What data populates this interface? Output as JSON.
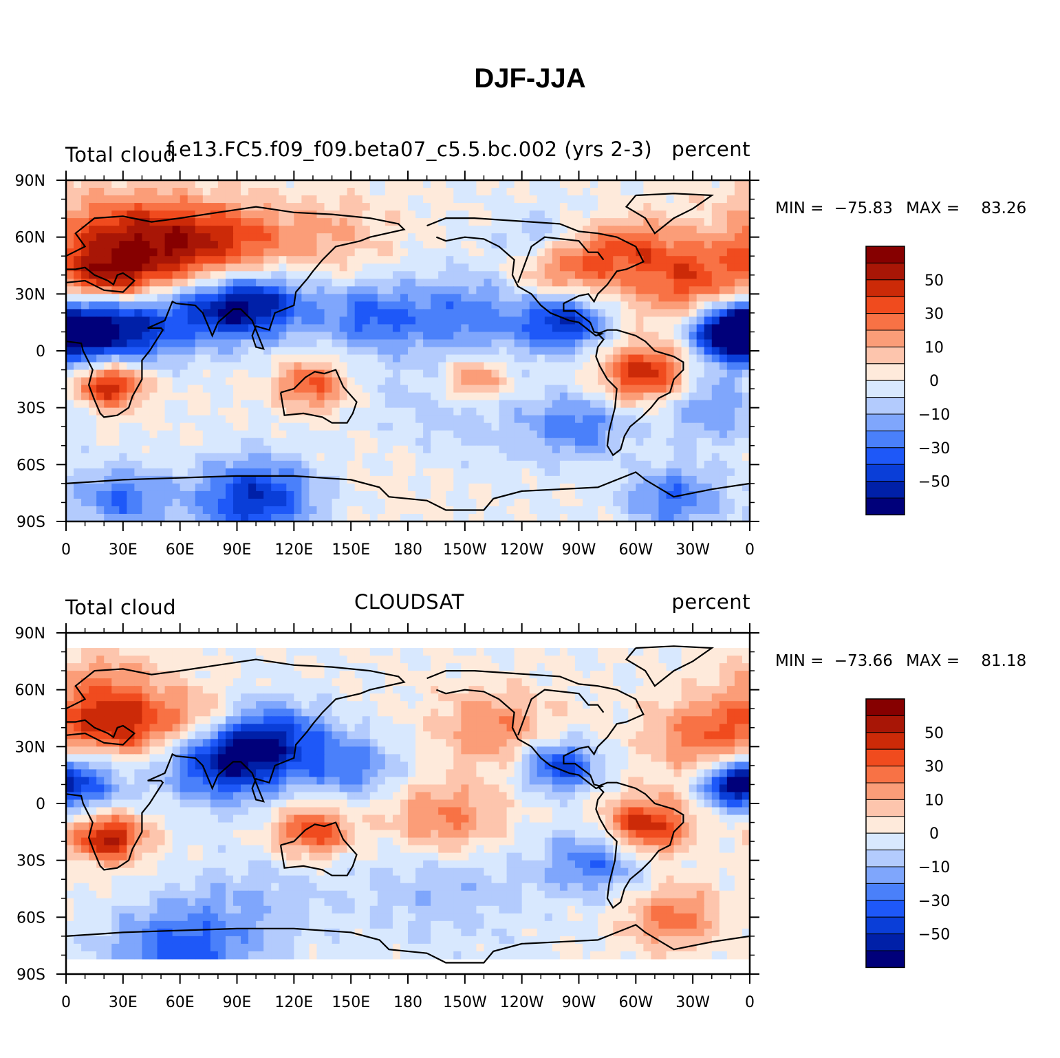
{
  "title": "DJF-JJA",
  "chart_data": [
    {
      "type": "heatmap",
      "variable": "Total cloud",
      "case": "f.e13.FC5.f09_f09.beta07_c5.5.bc.002 (yrs 2-3)",
      "units": "percent",
      "min_label": "MIN =",
      "min_value": "−75.83",
      "max_label": "MAX =",
      "max_value": "83.26",
      "x_ticks": [
        "0",
        "30E",
        "60E",
        "90E",
        "120E",
        "150E",
        "180",
        "150W",
        "120W",
        "90W",
        "60W",
        "30W",
        "0"
      ],
      "y_ticks": [
        "90N",
        "60N",
        "30N",
        "0",
        "30S",
        "60S",
        "90S"
      ],
      "xlim": [
        0,
        360
      ],
      "ylim": [
        -90,
        90
      ],
      "colorbar_labels": [
        "50",
        "30",
        "10",
        "0",
        "−10",
        "−30",
        "−50"
      ],
      "regions": [
        {
          "lon": 20,
          "lat": 60,
          "v": 35,
          "r": 30
        },
        {
          "lon": 55,
          "lat": 55,
          "v": 50,
          "r": 28
        },
        {
          "lon": 90,
          "lat": 58,
          "v": 30,
          "r": 25
        },
        {
          "lon": 22,
          "lat": 38,
          "v": 45,
          "r": 18
        },
        {
          "lon": 140,
          "lat": 62,
          "v": 20,
          "r": 25
        },
        {
          "lon": 5,
          "lat": 12,
          "v": -60,
          "r": 25
        },
        {
          "lon": 35,
          "lat": 12,
          "v": -45,
          "r": 22
        },
        {
          "lon": 80,
          "lat": 22,
          "v": -55,
          "r": 22
        },
        {
          "lon": 105,
          "lat": 25,
          "v": -45,
          "r": 20
        },
        {
          "lon": 160,
          "lat": 18,
          "v": -40,
          "r": 22
        },
        {
          "lon": 210,
          "lat": 20,
          "v": -35,
          "r": 25
        },
        {
          "lon": 262,
          "lat": 15,
          "v": -60,
          "r": 18
        },
        {
          "lon": 350,
          "lat": 10,
          "v": -70,
          "r": 15
        },
        {
          "lon": 22,
          "lat": -18,
          "v": 65,
          "r": 15
        },
        {
          "lon": 130,
          "lat": -18,
          "v": 45,
          "r": 15
        },
        {
          "lon": 215,
          "lat": -15,
          "v": 40,
          "r": 14
        },
        {
          "lon": 305,
          "lat": -12,
          "v": 60,
          "r": 18
        },
        {
          "lon": 265,
          "lat": 45,
          "v": 40,
          "r": 22
        },
        {
          "lon": 330,
          "lat": 35,
          "v": 45,
          "r": 25
        },
        {
          "lon": 300,
          "lat": 55,
          "v": 30,
          "r": 20
        },
        {
          "lon": 250,
          "lat": 60,
          "v": -25,
          "r": 18
        },
        {
          "lon": 200,
          "lat": -35,
          "v": -20,
          "r": 40
        },
        {
          "lon": 270,
          "lat": -40,
          "v": -35,
          "r": 20
        },
        {
          "lon": 340,
          "lat": -30,
          "v": -30,
          "r": 22
        },
        {
          "lon": 100,
          "lat": -78,
          "v": -60,
          "r": 25
        },
        {
          "lon": 30,
          "lat": -78,
          "v": -40,
          "r": 20
        },
        {
          "lon": 320,
          "lat": -78,
          "v": -40,
          "r": 20
        },
        {
          "lon": 180,
          "lat": -55,
          "v": 10,
          "r": 35
        }
      ]
    },
    {
      "type": "heatmap",
      "variable": "Total cloud",
      "case": "CLOUDSAT",
      "units": "percent",
      "min_label": "MIN =",
      "min_value": "−73.66",
      "max_label": "MAX =",
      "max_value": "81.18",
      "x_ticks": [
        "0",
        "30E",
        "60E",
        "90E",
        "120E",
        "150E",
        "180",
        "150W",
        "120W",
        "90W",
        "60W",
        "30W",
        "0"
      ],
      "y_ticks": [
        "90N",
        "60N",
        "30N",
        "0",
        "30S",
        "60S",
        "90S"
      ],
      "xlim": [
        0,
        360
      ],
      "ylim": [
        -90,
        90
      ],
      "data_lat_range": [
        -82,
        82
      ],
      "colorbar_labels": [
        "50",
        "30",
        "10",
        "0",
        "−10",
        "−30",
        "−50"
      ],
      "regions": [
        {
          "lon": 20,
          "lat": 60,
          "v": 30,
          "r": 25
        },
        {
          "lon": 30,
          "lat": 40,
          "v": 45,
          "r": 20
        },
        {
          "lon": 70,
          "lat": 45,
          "v": 30,
          "r": 18
        },
        {
          "lon": 5,
          "lat": 12,
          "v": -50,
          "r": 20
        },
        {
          "lon": 85,
          "lat": 22,
          "v": -65,
          "r": 25
        },
        {
          "lon": 110,
          "lat": 35,
          "v": -45,
          "r": 22
        },
        {
          "lon": 150,
          "lat": 20,
          "v": -35,
          "r": 20
        },
        {
          "lon": 22,
          "lat": -18,
          "v": 65,
          "r": 15
        },
        {
          "lon": 130,
          "lat": -15,
          "v": 50,
          "r": 16
        },
        {
          "lon": 200,
          "lat": -10,
          "v": 40,
          "r": 25
        },
        {
          "lon": 305,
          "lat": -12,
          "v": 60,
          "r": 18
        },
        {
          "lon": 260,
          "lat": 20,
          "v": -55,
          "r": 16
        },
        {
          "lon": 225,
          "lat": 40,
          "v": 30,
          "r": 25
        },
        {
          "lon": 340,
          "lat": 35,
          "v": 40,
          "r": 25
        },
        {
          "lon": 350,
          "lat": 10,
          "v": -50,
          "r": 12
        },
        {
          "lon": 200,
          "lat": -40,
          "v": -20,
          "r": 40
        },
        {
          "lon": 280,
          "lat": -30,
          "v": -40,
          "r": 20
        },
        {
          "lon": 60,
          "lat": -78,
          "v": -45,
          "r": 30
        },
        {
          "lon": 320,
          "lat": -60,
          "v": 35,
          "r": 20
        },
        {
          "lon": 100,
          "lat": -50,
          "v": -15,
          "r": 30
        }
      ]
    }
  ]
}
